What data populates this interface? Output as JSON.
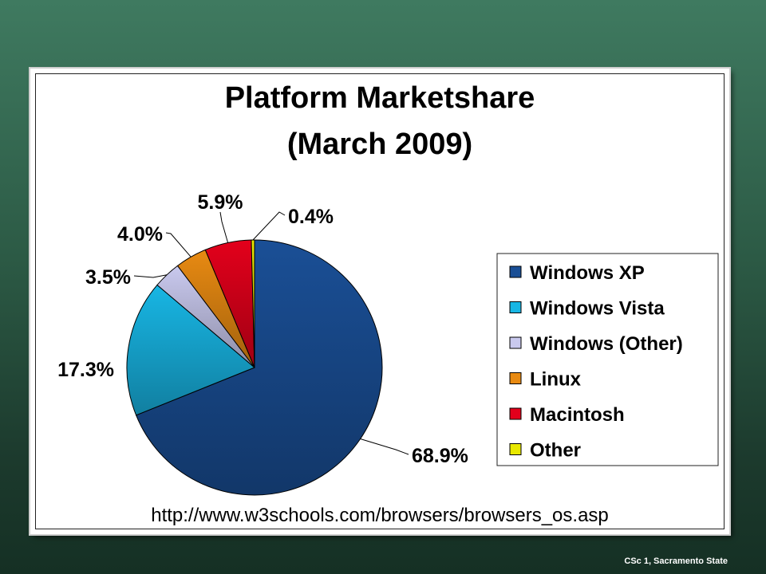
{
  "footer_text": "CSc 1, Sacramento State",
  "source_url": "http://www.w3schools.com/browsers/browsers_os.asp",
  "chart_data": {
    "type": "pie",
    "title": "Platform Marketshare",
    "subtitle": "(March 2009)",
    "legend_position": "right",
    "slices": [
      {
        "name": "Windows XP",
        "value": 68.9,
        "label": "68.9%",
        "color": "#1a4f96"
      },
      {
        "name": "Windows Vista",
        "value": 17.3,
        "label": "17.3%",
        "color": "#18b6e4"
      },
      {
        "name": "Windows (Other)",
        "value": 3.5,
        "label": "3.5%",
        "color": "#c9c9ee"
      },
      {
        "name": "Linux",
        "value": 4.0,
        "label": "4.0%",
        "color": "#e88a12"
      },
      {
        "name": "Macintosh",
        "value": 5.9,
        "label": "5.9%",
        "color": "#e3001b"
      },
      {
        "name": "Other",
        "value": 0.4,
        "label": "0.4%",
        "color": "#e8e800"
      }
    ]
  }
}
